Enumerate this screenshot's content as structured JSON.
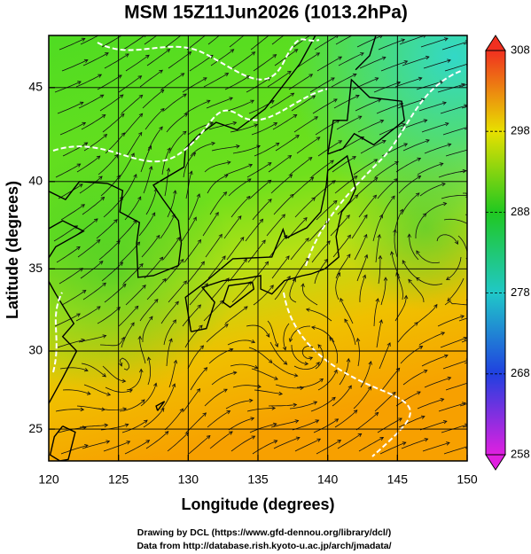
{
  "title": "MSM 15Z11Jun2026 (1013.2hPa)",
  "x_label": "Longitude (degrees)",
  "y_label": "Latitude  (degrees)",
  "xlim": [
    120,
    150
  ],
  "xticks": [
    120,
    125,
    130,
    135,
    140,
    145,
    150
  ],
  "ylim": [
    22.9,
    47.6
  ],
  "yticks": [
    25,
    30,
    35,
    40,
    45
  ],
  "colorbar": {
    "lim": [
      258,
      308
    ],
    "ticks": [
      258,
      268,
      278,
      288,
      298,
      308
    ]
  },
  "credits": [
    "Drawing by DCL (https://www.gfd-dennou.org/library/dcl/)",
    "Data from http://database.rish.kyoto-u.ac.jp/arch/jmadata/"
  ]
}
